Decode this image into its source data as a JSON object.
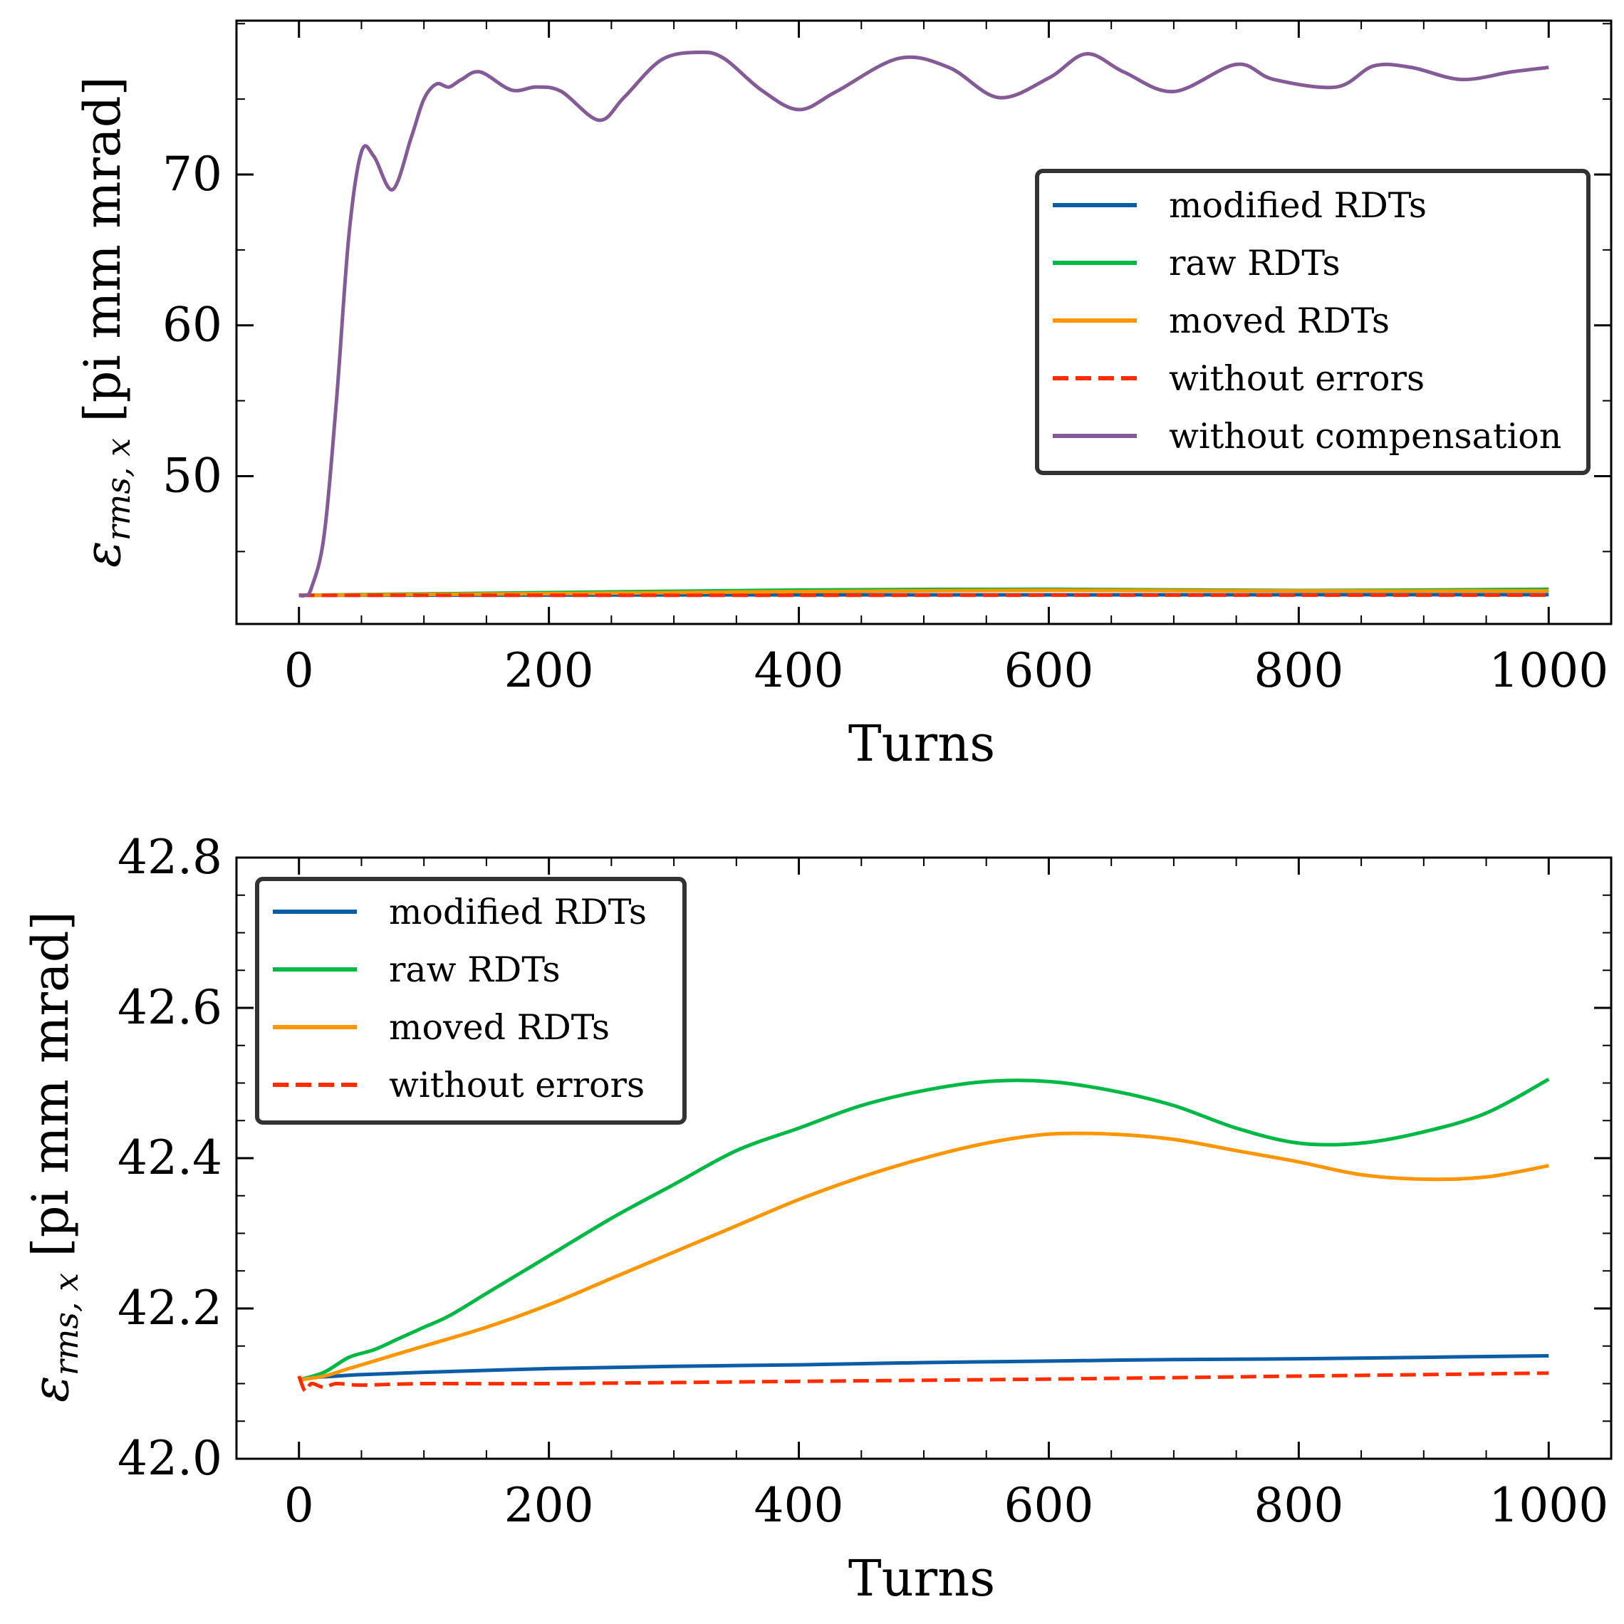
{
  "figure": {
    "background": "#ffffff"
  },
  "chart_data": [
    {
      "type": "line",
      "title": "",
      "xlabel": "Turns",
      "ylabel_symbol": "ε",
      "ylabel_subscript": "rms, x",
      "ylabel_units": "[pi mm mrad]",
      "xlim": [
        -50,
        1050
      ],
      "ylim": [
        40.2,
        80.2
      ],
      "xticks": [
        0,
        200,
        400,
        600,
        800,
        1000
      ],
      "xtick_labels": [
        "0",
        "200",
        "400",
        "600",
        "800",
        "1000"
      ],
      "yticks": [
        50,
        60,
        70
      ],
      "ytick_labels": [
        "50",
        "60",
        "70"
      ],
      "legend_position": "right-center",
      "series": [
        {
          "name": "modified RDTs",
          "color": "#0c5da5",
          "dashed": false,
          "x": [
            0,
            200,
            400,
            600,
            800,
            1000
          ],
          "y": [
            42.1,
            42.12,
            42.13,
            42.13,
            42.14,
            42.14
          ]
        },
        {
          "name": "raw RDTs",
          "color": "#00b945",
          "dashed": false,
          "x": [
            0,
            200,
            400,
            600,
            800,
            1000
          ],
          "y": [
            42.1,
            42.28,
            42.45,
            42.5,
            42.42,
            42.5
          ]
        },
        {
          "name": "moved RDTs",
          "color": "#ff9500",
          "dashed": false,
          "x": [
            0,
            200,
            400,
            600,
            800,
            1000
          ],
          "y": [
            42.1,
            42.21,
            42.35,
            42.43,
            42.39,
            42.39
          ]
        },
        {
          "name": "without errors",
          "color": "#ff2c00",
          "dashed": true,
          "x": [
            0,
            200,
            400,
            600,
            800,
            1000
          ],
          "y": [
            42.1,
            42.1,
            42.1,
            42.11,
            42.11,
            42.11
          ]
        },
        {
          "name": "without compensation",
          "color": "#845b97",
          "dashed": false,
          "x": [
            0,
            5,
            10,
            20,
            30,
            40,
            50,
            60,
            75,
            90,
            100,
            110,
            120,
            130,
            145,
            170,
            190,
            210,
            240,
            260,
            290,
            320,
            340,
            370,
            400,
            430,
            480,
            520,
            560,
            600,
            630,
            660,
            700,
            750,
            780,
            830,
            860,
            890,
            930,
            970,
            1000
          ],
          "y": [
            42.1,
            42.1,
            42.6,
            46,
            55,
            66,
            71.5,
            71.2,
            69,
            72.5,
            75,
            76,
            75.8,
            76.3,
            76.8,
            75.6,
            75.8,
            75.5,
            73.6,
            75.1,
            77.6,
            78.1,
            77.7,
            75.6,
            74.3,
            75.5,
            77.7,
            77.1,
            75.1,
            76.4,
            78,
            76.8,
            75.5,
            77.3,
            76.3,
            75.8,
            77.2,
            77.1,
            76.3,
            76.8,
            77.1
          ]
        }
      ]
    },
    {
      "type": "line",
      "title": "",
      "xlabel": "Turns",
      "ylabel_symbol": "ε",
      "ylabel_subscript": "rms, x",
      "ylabel_units": "[pi mm mrad]",
      "xlim": [
        -50,
        1050
      ],
      "ylim": [
        42.0,
        42.8
      ],
      "xticks": [
        0,
        200,
        400,
        600,
        800,
        1000
      ],
      "xtick_labels": [
        "0",
        "200",
        "400",
        "600",
        "800",
        "1000"
      ],
      "yticks": [
        42.0,
        42.2,
        42.4,
        42.6,
        42.8
      ],
      "ytick_labels": [
        "42.0",
        "42.2",
        "42.4",
        "42.6",
        "42.8"
      ],
      "legend_position": "upper-left",
      "series": [
        {
          "name": "modified RDTs",
          "color": "#0c5da5",
          "dashed": false,
          "x": [
            0,
            10,
            30,
            50,
            100,
            200,
            300,
            400,
            500,
            600,
            700,
            800,
            900,
            1000
          ],
          "y": [
            42.105,
            42.108,
            42.11,
            42.112,
            42.115,
            42.12,
            42.123,
            42.125,
            42.128,
            42.13,
            42.132,
            42.133,
            42.135,
            42.137
          ]
        },
        {
          "name": "raw RDTs",
          "color": "#00b945",
          "dashed": false,
          "x": [
            0,
            20,
            40,
            60,
            80,
            100,
            120,
            150,
            180,
            200,
            250,
            300,
            350,
            400,
            450,
            500,
            550,
            600,
            650,
            700,
            750,
            800,
            850,
            900,
            950,
            1000
          ],
          "y": [
            42.105,
            42.115,
            42.135,
            42.145,
            42.16,
            42.175,
            42.19,
            42.22,
            42.25,
            42.27,
            42.32,
            42.365,
            42.41,
            42.44,
            42.47,
            42.49,
            42.502,
            42.502,
            42.49,
            42.47,
            42.44,
            42.42,
            42.42,
            42.435,
            42.46,
            42.505
          ]
        },
        {
          "name": "moved RDTs",
          "color": "#ff9500",
          "dashed": false,
          "x": [
            0,
            20,
            40,
            60,
            80,
            100,
            150,
            200,
            250,
            300,
            350,
            400,
            450,
            500,
            550,
            600,
            650,
            700,
            750,
            800,
            850,
            900,
            950,
            1000
          ],
          "y": [
            42.105,
            42.11,
            42.12,
            42.13,
            42.14,
            42.15,
            42.175,
            42.205,
            42.24,
            42.275,
            42.31,
            42.345,
            42.375,
            42.4,
            42.42,
            42.432,
            42.432,
            42.425,
            42.41,
            42.395,
            42.378,
            42.372,
            42.375,
            42.39
          ]
        },
        {
          "name": "without errors",
          "color": "#ff2c00",
          "dashed": true,
          "x": [
            0,
            5,
            10,
            20,
            30,
            50,
            100,
            200,
            400,
            600,
            800,
            1000
          ],
          "y": [
            42.11,
            42.09,
            42.1,
            42.095,
            42.1,
            42.098,
            42.1,
            42.1,
            42.103,
            42.106,
            42.11,
            42.114
          ]
        }
      ]
    }
  ]
}
